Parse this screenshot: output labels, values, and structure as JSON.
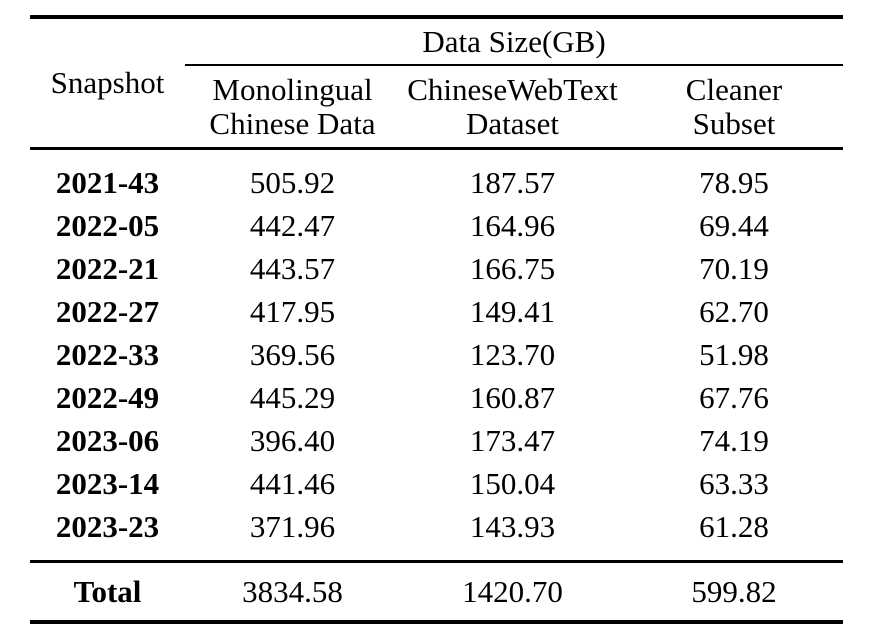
{
  "table": {
    "group_header": "Data Size(GB)",
    "snapshot_header": "Snapshot",
    "col_headers": [
      "Monolingual\nChinese Data",
      "ChineseWebText\nDataset",
      "Cleaner\nSubset"
    ],
    "rows": [
      {
        "label": "2021-43",
        "cells": [
          "505.92",
          "187.57",
          "78.95"
        ]
      },
      {
        "label": "2022-05",
        "cells": [
          "442.47",
          "164.96",
          "69.44"
        ]
      },
      {
        "label": "2022-21",
        "cells": [
          "443.57",
          "166.75",
          "70.19"
        ]
      },
      {
        "label": "2022-27",
        "cells": [
          "417.95",
          "149.41",
          "62.70"
        ]
      },
      {
        "label": "2022-33",
        "cells": [
          "369.56",
          "123.70",
          "51.98"
        ]
      },
      {
        "label": "2022-49",
        "cells": [
          "445.29",
          "160.87",
          "67.76"
        ]
      },
      {
        "label": "2023-06",
        "cells": [
          "396.40",
          "173.47",
          "74.19"
        ]
      },
      {
        "label": "2023-14",
        "cells": [
          "441.46",
          "150.04",
          "63.33"
        ]
      },
      {
        "label": "2023-23",
        "cells": [
          "371.96",
          "143.93",
          "61.28"
        ]
      }
    ],
    "total": {
      "label": "Total",
      "cells": [
        "3834.58",
        "1420.70",
        "599.82"
      ]
    }
  },
  "chart_data": {
    "type": "table",
    "title": "Data Size(GB)",
    "columns": [
      "Snapshot",
      "Monolingual Chinese Data",
      "ChineseWebText Dataset",
      "Cleaner Subset"
    ],
    "rows": [
      [
        "2021-43",
        505.92,
        187.57,
        78.95
      ],
      [
        "2022-05",
        442.47,
        164.96,
        69.44
      ],
      [
        "2022-21",
        443.57,
        166.75,
        70.19
      ],
      [
        "2022-27",
        417.95,
        149.41,
        62.7
      ],
      [
        "2022-33",
        369.56,
        123.7,
        51.98
      ],
      [
        "2022-49",
        445.29,
        160.87,
        67.76
      ],
      [
        "2023-06",
        396.4,
        173.47,
        74.19
      ],
      [
        "2023-14",
        441.46,
        150.04,
        63.33
      ],
      [
        "2023-23",
        371.96,
        143.93,
        61.28
      ]
    ],
    "total": [
      "Total",
      3834.58,
      1420.7,
      599.82
    ],
    "text_color": "#000000",
    "rule_color": "#000000",
    "background": "#ffffff"
  }
}
